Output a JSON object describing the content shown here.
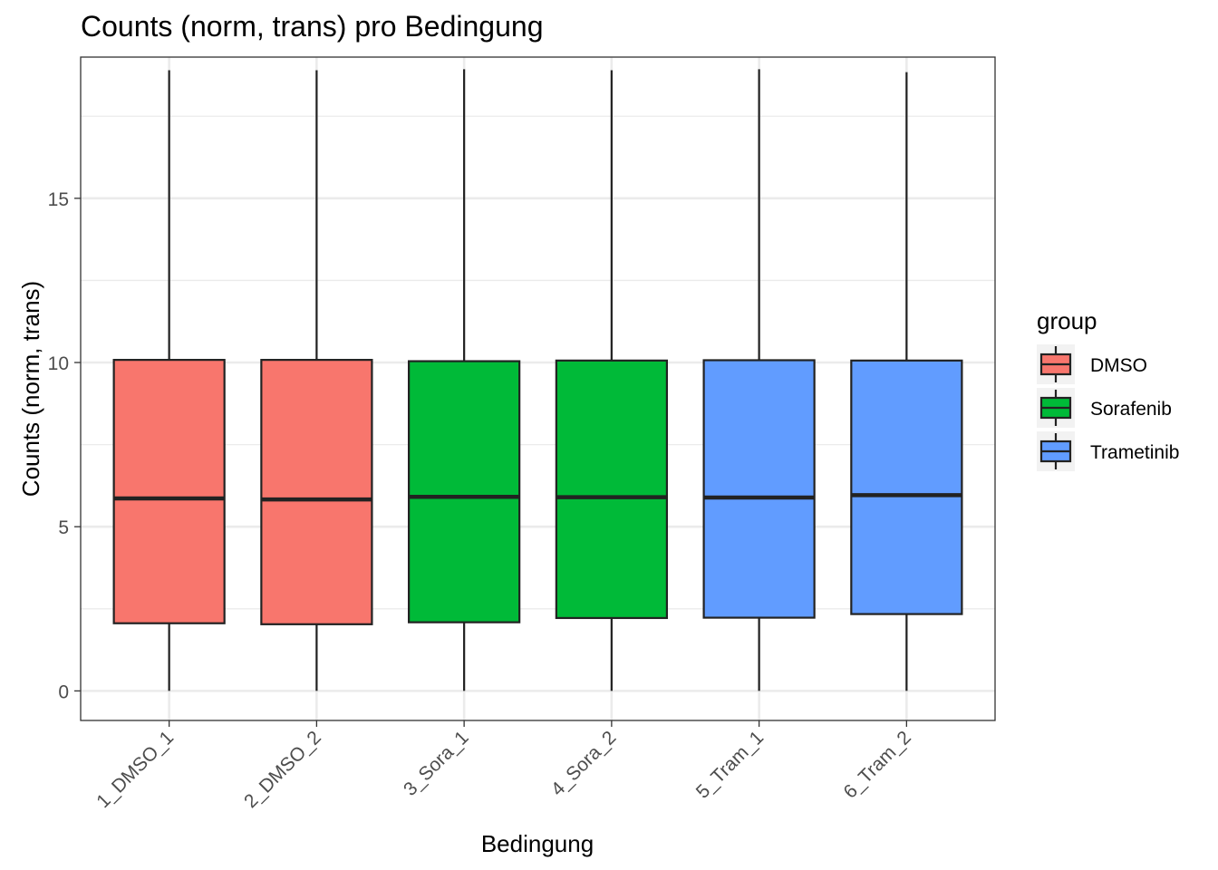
{
  "chart_data": {
    "type": "boxplot",
    "title": "Counts (norm, trans) pro Bedingung",
    "xlabel": "Bedingung",
    "ylabel": "Counts (norm, trans)",
    "ylim": [
      -0.9,
      19.3
    ],
    "yticks": [
      0,
      5,
      10,
      15
    ],
    "grid": true,
    "legend": {
      "title": "group",
      "position": "right"
    },
    "groups": [
      {
        "name": "DMSO",
        "color": "#F8766D"
      },
      {
        "name": "Sorafenib",
        "color": "#00BA38"
      },
      {
        "name": "Trametinib",
        "color": "#619CFF"
      }
    ],
    "categories": [
      "1_DMSO_1",
      "2_DMSO_2",
      "3_Sora_1",
      "4_Sora_2",
      "5_Tram_1",
      "6_Tram_2"
    ],
    "boxes": [
      {
        "category": "1_DMSO_1",
        "group": "DMSO",
        "min": 0,
        "q1": 2.06,
        "median": 5.86,
        "q3": 10.08,
        "max": 18.9
      },
      {
        "category": "2_DMSO_2",
        "group": "DMSO",
        "min": 0,
        "q1": 2.03,
        "median": 5.83,
        "q3": 10.08,
        "max": 18.9
      },
      {
        "category": "3_Sora_1",
        "group": "Sorafenib",
        "min": 0,
        "q1": 2.09,
        "median": 5.91,
        "q3": 10.04,
        "max": 18.93
      },
      {
        "category": "4_Sora_2",
        "group": "Sorafenib",
        "min": 0,
        "q1": 2.22,
        "median": 5.9,
        "q3": 10.06,
        "max": 18.9
      },
      {
        "category": "5_Tram_1",
        "group": "Trametinib",
        "min": 0,
        "q1": 2.23,
        "median": 5.89,
        "q3": 10.07,
        "max": 18.93
      },
      {
        "category": "6_Tram_2",
        "group": "Trametinib",
        "min": 0,
        "q1": 2.34,
        "median": 5.96,
        "q3": 10.06,
        "max": 18.84
      }
    ]
  }
}
